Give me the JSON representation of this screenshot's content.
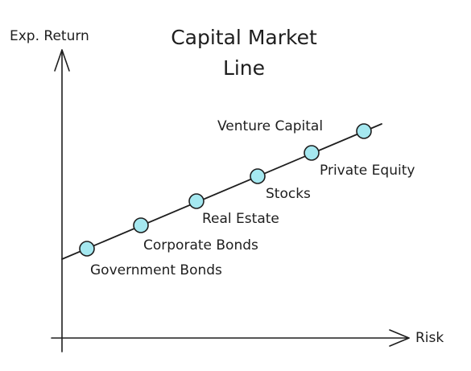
{
  "title": {
    "line1": "Capital Market",
    "line2": "Line"
  },
  "axes": {
    "y_label": "Exp. Return",
    "x_label": "Risk"
  },
  "colors": {
    "point_fill": "#a5e8f0",
    "stroke": "#1e1e1e"
  },
  "assets": [
    {
      "label": "Government Bonds"
    },
    {
      "label": "Corporate Bonds"
    },
    {
      "label": "Real Estate"
    },
    {
      "label": "Stocks"
    },
    {
      "label": "Private Equity"
    },
    {
      "label": "Venture Capital"
    }
  ]
}
